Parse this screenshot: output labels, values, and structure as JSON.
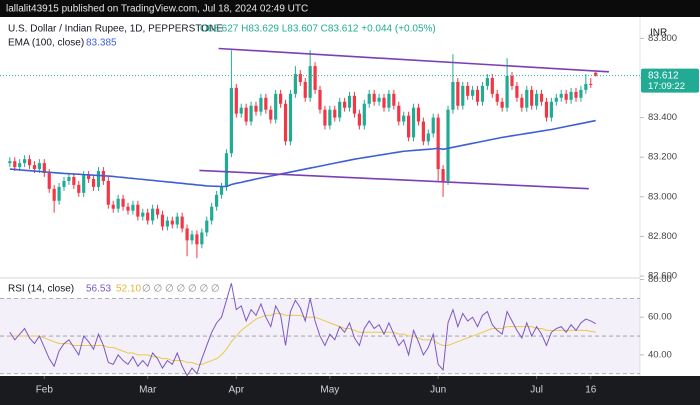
{
  "header": {
    "publisher": "lallalit43915 published on TradingView.com, Jul 18, 2024 02:49 UTC"
  },
  "legend": {
    "symbol": "U.S. Dollar / Indian Rupee, 1D, PEPPERSTONE",
    "ohlc": "O83.627 H83.629 L83.607 C83.612 +0.044 (+0.05%)",
    "ema": "EMA (100, close)",
    "ema_value": "83.385",
    "rsi": "RSI (14, close)",
    "rsi_value": "56.53",
    "rsi_ma_value": "52.10",
    "rsi_extra": "∅ ∅ ∅ ∅ ∅ ∅ ∅",
    "currency": "INR",
    "countdown": "17:09:22"
  },
  "chart_data": {
    "type": "candlestick",
    "up_color": "#22ab94",
    "down_color": "#f23645",
    "ylim": [
      82.59,
      83.908
    ],
    "yticks": [
      {
        "value": 82.6,
        "label": "82.600"
      },
      {
        "value": 82.8,
        "label": "82.800"
      },
      {
        "value": 83.0,
        "label": "83.000"
      },
      {
        "value": 83.2,
        "label": "83.200"
      },
      {
        "value": 83.4,
        "label": "83.400"
      },
      {
        "value": 83.6,
        "label": "83.600"
      },
      {
        "value": 83.8,
        "label": "83.800"
      }
    ],
    "xlim": [
      -2,
      128
    ],
    "xticks": [
      {
        "value": 7,
        "label": "Feb"
      },
      {
        "value": 28,
        "label": "Mar"
      },
      {
        "value": 46,
        "label": "Apr"
      },
      {
        "value": 65,
        "label": "May"
      },
      {
        "value": 87,
        "label": "Jun"
      },
      {
        "value": 107,
        "label": "Jul"
      },
      {
        "value": 118,
        "label": "16"
      }
    ],
    "open": [
      83.17,
      83.18,
      83.15,
      83.17,
      83.19,
      83.16,
      83.14,
      83.17,
      83.12,
      83.04,
      82.98,
      83.05,
      83.08,
      83.1,
      83.06,
      83.02,
      83.11,
      83.09,
      83.05,
      83.13,
      83.08,
      82.96,
      82.94,
      82.99,
      82.95,
      82.93,
      82.96,
      82.9,
      82.92,
      82.88,
      82.94,
      82.91,
      82.85,
      82.88,
      82.86,
      82.9,
      82.84,
      82.78,
      82.81,
      82.76,
      82.82,
      82.88,
      82.95,
      83.01,
      83.05,
      83.22,
      83.55,
      83.42,
      83.45,
      83.38,
      83.46,
      83.43,
      83.5,
      83.44,
      83.39,
      83.52,
      83.47,
      83.28,
      83.52,
      83.62,
      83.58,
      83.5,
      83.66,
      83.54,
      83.44,
      83.36,
      83.44,
      83.4,
      83.48,
      83.45,
      83.51,
      83.42,
      83.36,
      83.47,
      83.52,
      83.48,
      83.5,
      83.45,
      83.52,
      83.46,
      83.38,
      83.41,
      83.3,
      83.45,
      83.38,
      83.28,
      83.32,
      83.4,
      83.14,
      83.08,
      83.44,
      83.58,
      83.46,
      83.56,
      83.51,
      83.54,
      83.48,
      83.56,
      83.6,
      83.52,
      83.48,
      83.45,
      83.61,
      83.56,
      83.5,
      83.45,
      83.54,
      83.46,
      83.52,
      83.48,
      83.4,
      83.48,
      83.5,
      83.52,
      83.49,
      83.53,
      83.5,
      83.54,
      83.57,
      83.627
    ],
    "high": [
      83.2,
      83.2,
      83.19,
      83.21,
      83.21,
      83.18,
      83.19,
      83.19,
      83.14,
      83.06,
      83.07,
      83.1,
      83.12,
      83.12,
      83.08,
      83.13,
      83.13,
      83.11,
      83.15,
      83.15,
      83.1,
      82.98,
      83.01,
      83.01,
      82.97,
      82.98,
      82.98,
      82.94,
      82.94,
      82.96,
      82.96,
      82.93,
      82.9,
      82.9,
      82.92,
      82.92,
      82.86,
      82.83,
      82.83,
      82.84,
      82.9,
      82.97,
      83.03,
      83.07,
      83.24,
      83.74,
      83.57,
      83.47,
      83.47,
      83.48,
      83.48,
      83.52,
      83.52,
      83.46,
      83.54,
      83.54,
      83.49,
      83.54,
      83.66,
      83.64,
      83.6,
      83.74,
      83.68,
      83.56,
      83.46,
      83.46,
      83.46,
      83.5,
      83.5,
      83.53,
      83.53,
      83.44,
      83.49,
      83.54,
      83.54,
      83.52,
      83.52,
      83.54,
      83.54,
      83.48,
      83.43,
      83.43,
      83.47,
      83.47,
      83.4,
      83.34,
      83.42,
      83.42,
      83.16,
      83.46,
      83.72,
      83.6,
      83.58,
      83.58,
      83.56,
      83.56,
      83.58,
      83.62,
      83.62,
      83.54,
      83.5,
      83.7,
      83.63,
      83.58,
      83.52,
      83.56,
      83.56,
      83.54,
      83.54,
      83.5,
      83.5,
      83.52,
      83.54,
      83.54,
      83.55,
      83.55,
      83.56,
      83.62,
      83.6,
      83.629
    ],
    "low": [
      83.15,
      83.13,
      83.13,
      83.15,
      83.14,
      83.12,
      83.12,
      83.1,
      83.02,
      82.92,
      82.96,
      83.03,
      83.06,
      83.04,
      83.0,
      83.0,
      83.07,
      83.03,
      83.03,
      83.06,
      82.94,
      82.92,
      82.92,
      82.93,
      82.91,
      82.91,
      82.88,
      82.88,
      82.86,
      82.86,
      82.89,
      82.83,
      82.83,
      82.84,
      82.84,
      82.82,
      82.7,
      82.76,
      82.69,
      82.74,
      82.8,
      82.86,
      82.93,
      82.99,
      83.03,
      83.2,
      83.4,
      83.4,
      83.36,
      83.36,
      83.41,
      83.41,
      83.42,
      83.37,
      83.37,
      83.45,
      83.26,
      83.26,
      83.5,
      83.56,
      83.48,
      83.48,
      83.52,
      83.42,
      83.34,
      83.34,
      83.38,
      83.38,
      83.43,
      83.43,
      83.4,
      83.34,
      83.34,
      83.45,
      83.46,
      83.46,
      83.43,
      83.43,
      83.44,
      83.36,
      83.36,
      83.28,
      83.28,
      83.36,
      83.26,
      83.26,
      83.3,
      83.08,
      83.0,
      83.06,
      83.42,
      83.44,
      83.44,
      83.49,
      83.49,
      83.46,
      83.46,
      83.54,
      83.5,
      83.46,
      83.43,
      83.43,
      83.54,
      83.48,
      83.43,
      83.43,
      83.44,
      83.44,
      83.46,
      83.38,
      83.38,
      83.46,
      83.48,
      83.47,
      83.47,
      83.48,
      83.48,
      83.52,
      83.55,
      83.607
    ],
    "close": [
      83.18,
      83.15,
      83.17,
      83.19,
      83.16,
      83.14,
      83.17,
      83.12,
      83.04,
      82.98,
      83.05,
      83.08,
      83.1,
      83.06,
      83.02,
      83.11,
      83.09,
      83.05,
      83.13,
      83.08,
      82.96,
      82.94,
      82.99,
      82.95,
      82.93,
      82.96,
      82.9,
      82.92,
      82.88,
      82.94,
      82.91,
      82.85,
      82.88,
      82.86,
      82.9,
      82.84,
      82.78,
      82.81,
      82.76,
      82.82,
      82.88,
      82.95,
      83.01,
      83.05,
      83.22,
      83.55,
      83.42,
      83.45,
      83.38,
      83.46,
      83.43,
      83.5,
      83.44,
      83.39,
      83.52,
      83.47,
      83.28,
      83.52,
      83.62,
      83.58,
      83.5,
      83.66,
      83.54,
      83.44,
      83.36,
      83.44,
      83.4,
      83.48,
      83.45,
      83.51,
      83.42,
      83.36,
      83.47,
      83.52,
      83.48,
      83.5,
      83.45,
      83.52,
      83.46,
      83.38,
      83.41,
      83.3,
      83.45,
      83.38,
      83.28,
      83.32,
      83.4,
      83.14,
      83.08,
      83.44,
      83.58,
      83.46,
      83.56,
      83.51,
      83.54,
      83.48,
      83.56,
      83.6,
      83.52,
      83.48,
      83.45,
      83.61,
      83.56,
      83.5,
      83.45,
      83.54,
      83.46,
      83.52,
      83.48,
      83.4,
      83.48,
      83.5,
      83.52,
      83.49,
      83.53,
      83.5,
      83.54,
      83.57,
      83.568,
      83.612
    ],
    "ema": {
      "name": "EMA (100, close)",
      "color": "#3d5fd6",
      "values": [
        83.14,
        83.138,
        83.136,
        83.134,
        83.132,
        83.13,
        83.128,
        83.126,
        83.124,
        83.122,
        83.12,
        83.118,
        83.117,
        83.115,
        83.114,
        83.112,
        83.111,
        83.109,
        83.108,
        83.106,
        83.105,
        83.103,
        83.1,
        83.098,
        83.095,
        83.093,
        83.09,
        83.088,
        83.085,
        83.083,
        83.08,
        83.078,
        83.075,
        83.073,
        83.07,
        83.068,
        83.065,
        83.063,
        83.06,
        83.058,
        83.055,
        83.054,
        83.053,
        83.052,
        83.052,
        83.062,
        83.068,
        83.073,
        83.079,
        83.084,
        83.09,
        83.095,
        83.1,
        83.105,
        83.11,
        83.115,
        83.12,
        83.125,
        83.13,
        83.135,
        83.14,
        83.145,
        83.15,
        83.155,
        83.16,
        83.165,
        83.17,
        83.175,
        83.18,
        83.185,
        83.19,
        83.194,
        83.198,
        83.202,
        83.206,
        83.21,
        83.214,
        83.218,
        83.222,
        83.226,
        83.23,
        83.232,
        83.234,
        83.236,
        83.238,
        83.24,
        83.242,
        83.245,
        83.24,
        83.245,
        83.25,
        83.255,
        83.26,
        83.265,
        83.27,
        83.275,
        83.28,
        83.285,
        83.29,
        83.295,
        83.3,
        83.304,
        83.308,
        83.312,
        83.316,
        83.32,
        83.324,
        83.328,
        83.332,
        83.336,
        83.34,
        83.345,
        83.35,
        83.355,
        83.36,
        83.365,
        83.37,
        83.375,
        83.38,
        83.385
      ]
    },
    "trendlines": [
      {
        "color": "#7b3fb5",
        "x": [
          42.4,
          121.7
        ],
        "y": [
          83.749,
          83.631
        ]
      },
      {
        "color": "#7b3fb5",
        "x": [
          38.5,
          117.6
        ],
        "y": [
          83.133,
          83.041
        ]
      }
    ],
    "rsi": {
      "color": "#7e57c2",
      "ma_color": "#e9c94a",
      "band_color": "#7e57c2",
      "ylim": [
        28.8,
        80.8
      ],
      "yticks": [
        {
          "value": 40,
          "label": "40.00"
        },
        {
          "value": 60,
          "label": "60.00"
        },
        {
          "value": 80,
          "label": "80.00"
        }
      ],
      "bands": [
        30,
        50,
        70
      ],
      "values": [
        52,
        48,
        51,
        54,
        49,
        46,
        50,
        44,
        38,
        34,
        42,
        46,
        48,
        44,
        40,
        50,
        47,
        43,
        51,
        45,
        36,
        35,
        40,
        37,
        35,
        39,
        34,
        37,
        34,
        41,
        38,
        33,
        37,
        35,
        41,
        34,
        29,
        33,
        30,
        38,
        45,
        52,
        57,
        60,
        69,
        78,
        64,
        66,
        58,
        64,
        61,
        67,
        60,
        55,
        66,
        61,
        45,
        63,
        69,
        65,
        58,
        70,
        58,
        50,
        45,
        51,
        48,
        55,
        52,
        57,
        49,
        45,
        54,
        58,
        54,
        56,
        51,
        57,
        51,
        45,
        48,
        40,
        53,
        47,
        40,
        44,
        51,
        35,
        32,
        57,
        64,
        55,
        62,
        58,
        60,
        55,
        61,
        63,
        56,
        53,
        51,
        63,
        58,
        53,
        49,
        57,
        50,
        55,
        51,
        45,
        52,
        54,
        55,
        52,
        56,
        53,
        57,
        59,
        58,
        56.53
      ],
      "ma_values": [
        50,
        50,
        50,
        50,
        50,
        50,
        50,
        49,
        48,
        47,
        46,
        46,
        46,
        45,
        45,
        45,
        45,
        45,
        45,
        45,
        44,
        44,
        43,
        42,
        41,
        41,
        40,
        40,
        40,
        39,
        39,
        38,
        38,
        37,
        37,
        37,
        36,
        36,
        35,
        35,
        36,
        37,
        38,
        40,
        43,
        47,
        50,
        53,
        55,
        57,
        59,
        60,
        61,
        61,
        62,
        62,
        61,
        61,
        61,
        61,
        60,
        60,
        60,
        59,
        58,
        57,
        56,
        55,
        54,
        54,
        53,
        52,
        52,
        52,
        52,
        52,
        52,
        52,
        52,
        51,
        51,
        50,
        50,
        49,
        48,
        48,
        48,
        46,
        45,
        45,
        46,
        47,
        48,
        49,
        50,
        51,
        52,
        53,
        54,
        54,
        54,
        55,
        55,
        55,
        55,
        55,
        55,
        54,
        54,
        53,
        53,
        53,
        53,
        53,
        53,
        53,
        53,
        53,
        52.5,
        52.1
      ]
    }
  }
}
